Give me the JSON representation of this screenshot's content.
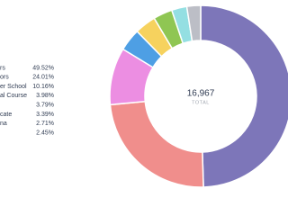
{
  "chart_data": {
    "type": "pie",
    "categories": [
      "rs",
      "ors",
      "er School",
      "al Course",
      null,
      "cate",
      "na",
      null
    ],
    "values": [
      49.52,
      24.01,
      10.16,
      3.98,
      3.79,
      3.39,
      2.71,
      2.45
    ],
    "value_labels": [
      "49.52%",
      "24.01%",
      "10.16%",
      "3.98%",
      "3.79%",
      "3.39%",
      "2.71%",
      "2.45%"
    ],
    "colors": [
      "#7d76b9",
      "#f08e8c",
      "#ec8ee2",
      "#4e9fe4",
      "#f6d25e",
      "#8fc653",
      "#94dfe2",
      "#bcbec6"
    ],
    "center_value": "16,967",
    "center_caption": "TOTAL"
  }
}
